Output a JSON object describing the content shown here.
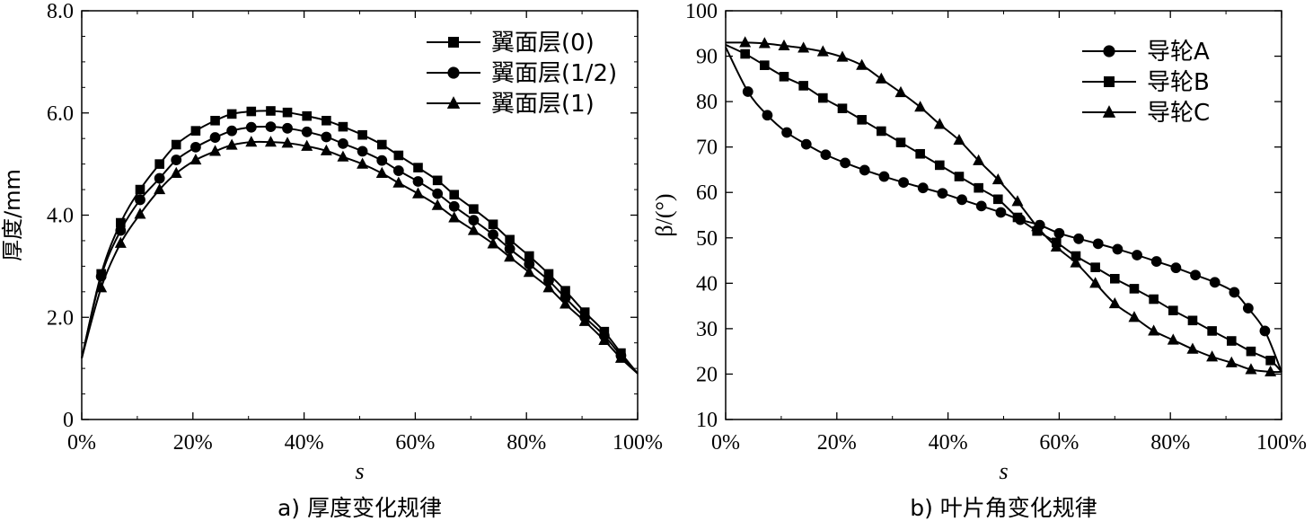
{
  "chart_data": [
    {
      "type": "line",
      "caption": "a) 厚度变化规律",
      "xlabel": "s",
      "ylabel": "厚度/mm",
      "xlim": [
        0,
        100
      ],
      "ylim": [
        0,
        8
      ],
      "x_ticks": [
        "0%",
        "20%",
        "40%",
        "60%",
        "80%",
        "100%"
      ],
      "y_ticks": [
        "0",
        "2.0",
        "4.0",
        "6.0",
        "8.0"
      ],
      "legend_position": "top-right",
      "series": [
        {
          "name": "翼面层(0)",
          "marker": "square",
          "x": [
            0,
            3.5,
            7,
            10.5,
            14,
            17,
            20.5,
            24,
            27,
            30.5,
            34,
            37,
            40.5,
            44,
            47,
            50.5,
            54,
            57,
            60.5,
            64,
            67,
            70.5,
            74,
            77,
            80.5,
            84,
            87,
            90.5,
            94,
            97,
            100
          ],
          "y": [
            1.2,
            2.85,
            3.85,
            4.5,
            5.0,
            5.38,
            5.65,
            5.85,
            5.98,
            6.03,
            6.04,
            6.01,
            5.94,
            5.85,
            5.73,
            5.57,
            5.38,
            5.17,
            4.93,
            4.68,
            4.4,
            4.12,
            3.82,
            3.52,
            3.2,
            2.85,
            2.52,
            2.1,
            1.72,
            1.3,
            0.9
          ]
        },
        {
          "name": "翼面层(1/2)",
          "marker": "circle",
          "x": [
            0,
            3.5,
            7,
            10.5,
            14,
            17,
            20.5,
            24,
            27,
            30.5,
            34,
            37,
            40.5,
            44,
            47,
            50.5,
            54,
            57,
            60.5,
            64,
            67,
            70.5,
            74,
            77,
            80.5,
            84,
            87,
            90.5,
            94,
            97,
            100
          ],
          "y": [
            1.2,
            2.8,
            3.7,
            4.3,
            4.72,
            5.08,
            5.33,
            5.52,
            5.65,
            5.72,
            5.73,
            5.7,
            5.63,
            5.53,
            5.4,
            5.25,
            5.07,
            4.87,
            4.66,
            4.42,
            4.17,
            3.9,
            3.62,
            3.34,
            3.04,
            2.72,
            2.38,
            2.0,
            1.64,
            1.25,
            0.9
          ]
        },
        {
          "name": "翼面层(1)",
          "marker": "triangle",
          "x": [
            0,
            3.5,
            7,
            10.5,
            14,
            17,
            20.5,
            24,
            27,
            30.5,
            34,
            37,
            40.5,
            44,
            47,
            50.5,
            54,
            57,
            60.5,
            64,
            67,
            70.5,
            74,
            77,
            80.5,
            84,
            87,
            90.5,
            94,
            97,
            100
          ],
          "y": [
            1.2,
            2.58,
            3.45,
            4.02,
            4.5,
            4.82,
            5.08,
            5.25,
            5.37,
            5.43,
            5.43,
            5.41,
            5.35,
            5.26,
            5.14,
            5.0,
            4.82,
            4.63,
            4.42,
            4.19,
            3.95,
            3.7,
            3.44,
            3.18,
            2.88,
            2.58,
            2.26,
            1.92,
            1.55,
            1.2,
            0.9
          ]
        }
      ]
    },
    {
      "type": "line",
      "caption": "b) 叶片角变化规律",
      "xlabel": "s",
      "ylabel": "β/(°)",
      "xlim": [
        0,
        100
      ],
      "ylim": [
        10,
        100
      ],
      "x_ticks": [
        "0%",
        "20%",
        "40%",
        "60%",
        "80%",
        "100%"
      ],
      "y_ticks": [
        "10",
        "20",
        "30",
        "40",
        "50",
        "60",
        "70",
        "80",
        "90",
        "100"
      ],
      "legend_position": "top-right",
      "series": [
        {
          "name": "导轮A",
          "marker": "circle",
          "x": [
            0,
            4,
            7.5,
            11,
            14.5,
            18,
            21.5,
            25,
            28.5,
            32,
            35.5,
            39,
            42.5,
            46,
            49.5,
            53,
            56.5,
            60,
            63.5,
            67,
            70.5,
            74,
            77.5,
            81,
            84.5,
            88,
            91.5,
            94,
            97,
            100
          ],
          "y": [
            92,
            82.2,
            77.0,
            73.2,
            70.6,
            68.3,
            66.5,
            64.9,
            63.5,
            62.2,
            61.0,
            59.8,
            58.4,
            57.0,
            55.6,
            54.0,
            52.8,
            51.0,
            49.8,
            48.7,
            47.5,
            46.2,
            44.8,
            43.4,
            41.8,
            40.2,
            38.0,
            34.5,
            29.5,
            20.5
          ]
        },
        {
          "name": "导轮B",
          "marker": "square",
          "x": [
            0,
            3.5,
            7,
            10.5,
            14,
            17.5,
            21,
            24.5,
            28,
            31.5,
            35,
            38.5,
            42,
            45.5,
            49,
            52.5,
            56,
            59.5,
            63,
            66.5,
            70,
            73.5,
            77,
            80.5,
            84,
            87.5,
            91,
            94.5,
            98,
            100
          ],
          "y": [
            92.5,
            90.5,
            88.0,
            85.5,
            83.5,
            80.8,
            78.5,
            76.0,
            73.5,
            71.0,
            68.5,
            66.0,
            63.5,
            61.0,
            58.5,
            54.5,
            51.5,
            49.0,
            46.0,
            43.5,
            41.0,
            38.8,
            36.5,
            34.0,
            31.8,
            29.5,
            27.3,
            25.0,
            23.0,
            20.5
          ]
        },
        {
          "name": "导轮C",
          "marker": "triangle",
          "x": [
            0,
            3.5,
            7,
            10.5,
            14,
            17.5,
            21,
            24.5,
            28,
            31.5,
            35,
            38.5,
            42,
            45.5,
            49,
            52.5,
            56,
            59.5,
            63,
            66.5,
            70,
            73.5,
            77,
            80.5,
            84,
            87.5,
            91,
            94.5,
            98,
            100
          ],
          "y": [
            93,
            93.0,
            92.8,
            92.3,
            91.8,
            91.0,
            89.8,
            88.0,
            85.0,
            82.0,
            78.8,
            75.0,
            71.5,
            67.0,
            62.8,
            58.0,
            52.5,
            48.0,
            44.5,
            40.0,
            35.5,
            32.5,
            29.5,
            27.5,
            25.5,
            23.8,
            22.5,
            21.0,
            20.5,
            20.5
          ]
        }
      ]
    }
  ]
}
